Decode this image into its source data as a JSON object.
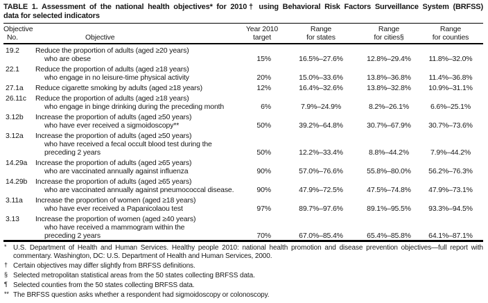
{
  "title": {
    "line1": "TABLE 1. Assessment of the national health objectives* for 2010† using Behavioral Risk Factors Surveillance System (BRFSS)",
    "line2": "data for selected indicators"
  },
  "table": {
    "header": {
      "no_l1": "Objective",
      "no_l2": "No.",
      "obj_l2": "Objective",
      "target_l1": "Year 2010",
      "target_l2": "target",
      "states_l1": "Range",
      "states_l2": "for states",
      "cities_l1": "Range",
      "cities_l2": "for cities§",
      "counties_l1": "Range",
      "counties_l2": "for counties"
    },
    "rows": [
      {
        "no": "19.2",
        "lines": [
          "Reduce the proportion of adults (aged ≥20 years)",
          "who are obese"
        ],
        "target": "15%",
        "states": "16.5%–27.6%",
        "cities": "12.8%–29.4%",
        "counties": "11.8%–32.0%"
      },
      {
        "no": "22.1",
        "lines": [
          "Reduce the proportion of adults (aged ≥18 years)",
          "who engage in no leisure-time physical activity"
        ],
        "target": "20%",
        "states": "15.0%–33.6%",
        "cities": "13.8%–36.8%",
        "counties": "11.4%–36.8%"
      },
      {
        "no": "27.1a",
        "lines": [
          "Reduce cigarette smoking by adults (aged ≥18 years)"
        ],
        "target": "12%",
        "states": "16.4%–32.6%",
        "cities": "13.8%–32.8%",
        "counties": "10.9%–31.1%"
      },
      {
        "no": "26.11c",
        "lines": [
          "Reduce the proportion of adults (aged ≥18 years)",
          "who engage in binge drinking during the preceding month"
        ],
        "target": "6%",
        "states": "7.9%–24.9%",
        "cities": "8.2%–26.1%",
        "counties": "6.6%–25.1%"
      },
      {
        "no": "3.12b",
        "lines": [
          "Increase the proportion of adults (aged ≥50 years)",
          "who have ever received a sigmoidoscopy**"
        ],
        "target": "50%",
        "states": "39.2%–64.8%",
        "cities": "30.7%–67.9%",
        "counties": "30.7%–73.6%"
      },
      {
        "no": "3.12a",
        "lines": [
          "Increase the proportion of adults (aged ≥50 years)",
          "who have received a fecal occult blood test during the",
          "preceding 2 years"
        ],
        "target": "50%",
        "states": "12.2%–33.4%",
        "cities": "8.8%–44.2%",
        "counties": "7.9%–44.2%"
      },
      {
        "no": "14.29a",
        "lines": [
          "Increase the proportion of adults (aged ≥65 years)",
          "who are vaccinated annually against influenza"
        ],
        "target": "90%",
        "states": "57.0%–76.6%",
        "cities": "55.8%–80.0%",
        "counties": "56.2%–76.3%"
      },
      {
        "no": "14.29b",
        "lines": [
          "Increase the proportion of adults (aged ≥65 years)",
          "who are vaccinated annually against pneumococcal disease."
        ],
        "target": "90%",
        "states": "47.9%–72.5%",
        "cities": "47.5%–74.8%",
        "counties": "47.9%–73.1%"
      },
      {
        "no": "3.11a",
        "lines": [
          "Increase the proportion of women (aged ≥18 years)",
          "who have ever received a Papanicolaou test"
        ],
        "target": "97%",
        "states": "89.7%–97.6%",
        "cities": "89.1%–95.5%",
        "counties": "93.3%–94.5%"
      },
      {
        "no": "3.13",
        "lines": [
          "Increase the proportion of women (aged ≥40 years)",
          "who have received a mammogram within the",
          "preceding 2 years"
        ],
        "target": "70%",
        "states": "67.0%–85.4%",
        "cities": "65.4%–85.8%",
        "counties": "64.1%–87.1%"
      }
    ]
  },
  "footnotes": [
    {
      "marker": "*",
      "text": "U.S. Department of Health and Human Services. Healthy people 2010: national health promotion and disease prevention objectives—full report with commentary. Washington, DC: U.S. Department of Health and Human Services, 2000."
    },
    {
      "marker": "†",
      "text": "Certain objectives may differ slightly from BRFSS definitions."
    },
    {
      "marker": "§",
      "text": "Selected metropolitan statistical areas from the 50 states collecting BRFSS data."
    },
    {
      "marker": "¶",
      "text": "Selected counties from the 50 states collecting BRFSS data."
    },
    {
      "marker": "**",
      "text": "The BRFSS question asks whether a respondent had sigmoidoscopy or colonoscopy."
    }
  ]
}
